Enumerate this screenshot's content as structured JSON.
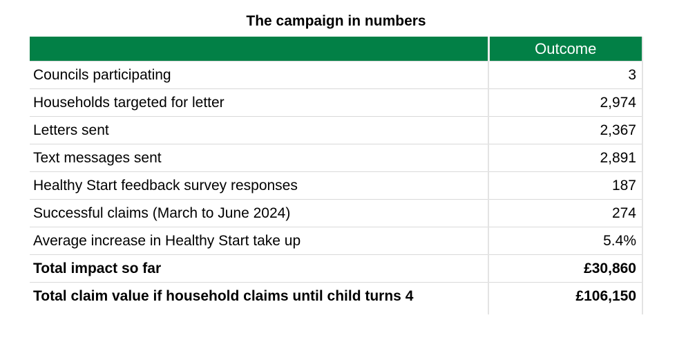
{
  "chart_data": {
    "type": "table",
    "title": "The campaign in numbers",
    "columns": [
      "",
      "Outcome"
    ],
    "rows": [
      {
        "label": "Councils participating",
        "value": "3",
        "bold": false
      },
      {
        "label": "Households targeted for letter",
        "value": "2,974",
        "bold": false
      },
      {
        "label": "Letters sent",
        "value": "2,367",
        "bold": false
      },
      {
        "label": "Text messages sent",
        "value": "2,891",
        "bold": false
      },
      {
        "label": "Healthy Start feedback survey responses",
        "value": "187",
        "bold": false
      },
      {
        "label": "Successful claims (March to June 2024)",
        "value": "274",
        "bold": false
      },
      {
        "label": "Average increase in Healthy Start take up",
        "value": "5.4%",
        "bold": false
      },
      {
        "label": "Total impact so far",
        "value": "£30,860",
        "bold": true
      },
      {
        "label": "Total claim value if household claims until child turns 4",
        "value": "£106,150",
        "bold": true
      }
    ],
    "legend": "none",
    "grid": "light-gray row and column dividers"
  },
  "colors": {
    "header_background": "#028046",
    "header_text": "#ffffff",
    "row_divider": "#d9d9d9",
    "column_divider": "#e3e3e3",
    "body_text": "#000000"
  }
}
